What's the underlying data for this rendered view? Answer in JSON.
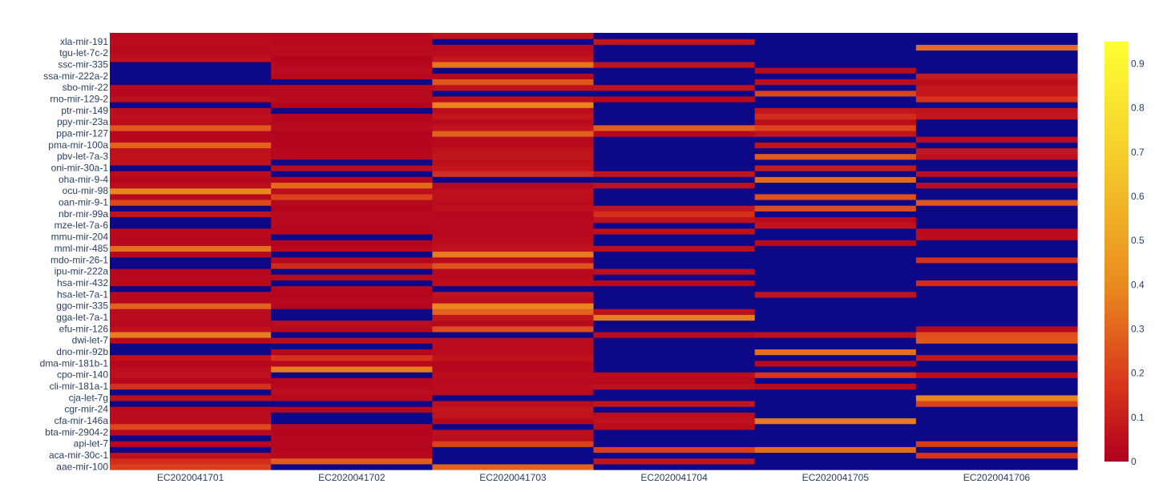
{
  "chart_data": {
    "type": "heatmap",
    "colorscale": [
      {
        "stop": 0.0,
        "color": "#0d0887"
      },
      {
        "stop": 0.001,
        "color": "#b0001e"
      },
      {
        "stop": 0.18,
        "color": "#d8351c"
      },
      {
        "stop": 0.42,
        "color": "#e98a1e"
      },
      {
        "stop": 0.7,
        "color": "#f4c82a"
      },
      {
        "stop": 1.0,
        "color": "#ffff33"
      }
    ],
    "zmin": 0,
    "zmax": 0.95,
    "x": [
      "EC2020041701",
      "EC2020041702",
      "EC2020041703",
      "EC2020041704",
      "EC2020041705",
      "EC2020041706"
    ],
    "y_ticks": [
      "aae-mir-100",
      "aca-mir-30c-1",
      "api-let-7",
      "bta-mir-2904-2",
      "cfa-mir-146a",
      "cgr-mir-24",
      "cja-let-7g",
      "cli-mir-181a-1",
      "cpo-mir-140",
      "dma-mir-181b-1",
      "dno-mir-92b",
      "dwi-let-7",
      "efu-mir-126",
      "gga-let-7a-1",
      "ggo-mir-335",
      "hsa-let-7a-1",
      "hsa-mir-432",
      "ipu-mir-222a",
      "mdo-mir-26-1",
      "mml-mir-485",
      "mmu-mir-204",
      "mze-let-7a-6",
      "nbr-mir-99a",
      "oan-mir-9-1",
      "ocu-mir-98",
      "oha-mir-9-4",
      "oni-mir-30a-1",
      "pbv-let-7a-3",
      "pma-mir-100a",
      "ppa-mir-127",
      "ppy-mir-23a",
      "ptr-mir-149",
      "rno-mir-129-2",
      "sbo-mir-22",
      "ssa-mir-222a-2",
      "ssc-mir-335",
      "tgu-let-7c-2",
      "xla-mir-191"
    ],
    "colorbar_ticks": [
      0,
      0.1,
      0.2,
      0.3,
      0.4,
      0.5,
      0.6,
      0.7,
      0.8,
      0.9
    ],
    "rows_per_tick": 2,
    "profiles": [
      {
        "sample": "EC2020041701",
        "zero_frac": 0.22,
        "base": 0.04,
        "high_frac": 0.14,
        "seed": 11
      },
      {
        "sample": "EC2020041702",
        "zero_frac": 0.26,
        "base": 0.03,
        "high_frac": 0.12,
        "seed": 23
      },
      {
        "sample": "EC2020041703",
        "zero_frac": 0.2,
        "base": 0.05,
        "high_frac": 0.13,
        "seed": 37
      },
      {
        "sample": "EC2020041704",
        "zero_frac": 0.7,
        "base": 0.05,
        "high_frac": 0.1,
        "seed": 41
      },
      {
        "sample": "EC2020041705",
        "zero_frac": 0.55,
        "base": 0.06,
        "high_frac": 0.14,
        "seed": 53
      },
      {
        "sample": "EC2020041706",
        "zero_frac": 0.62,
        "base": 0.06,
        "high_frac": 0.13,
        "seed": 67
      }
    ]
  }
}
